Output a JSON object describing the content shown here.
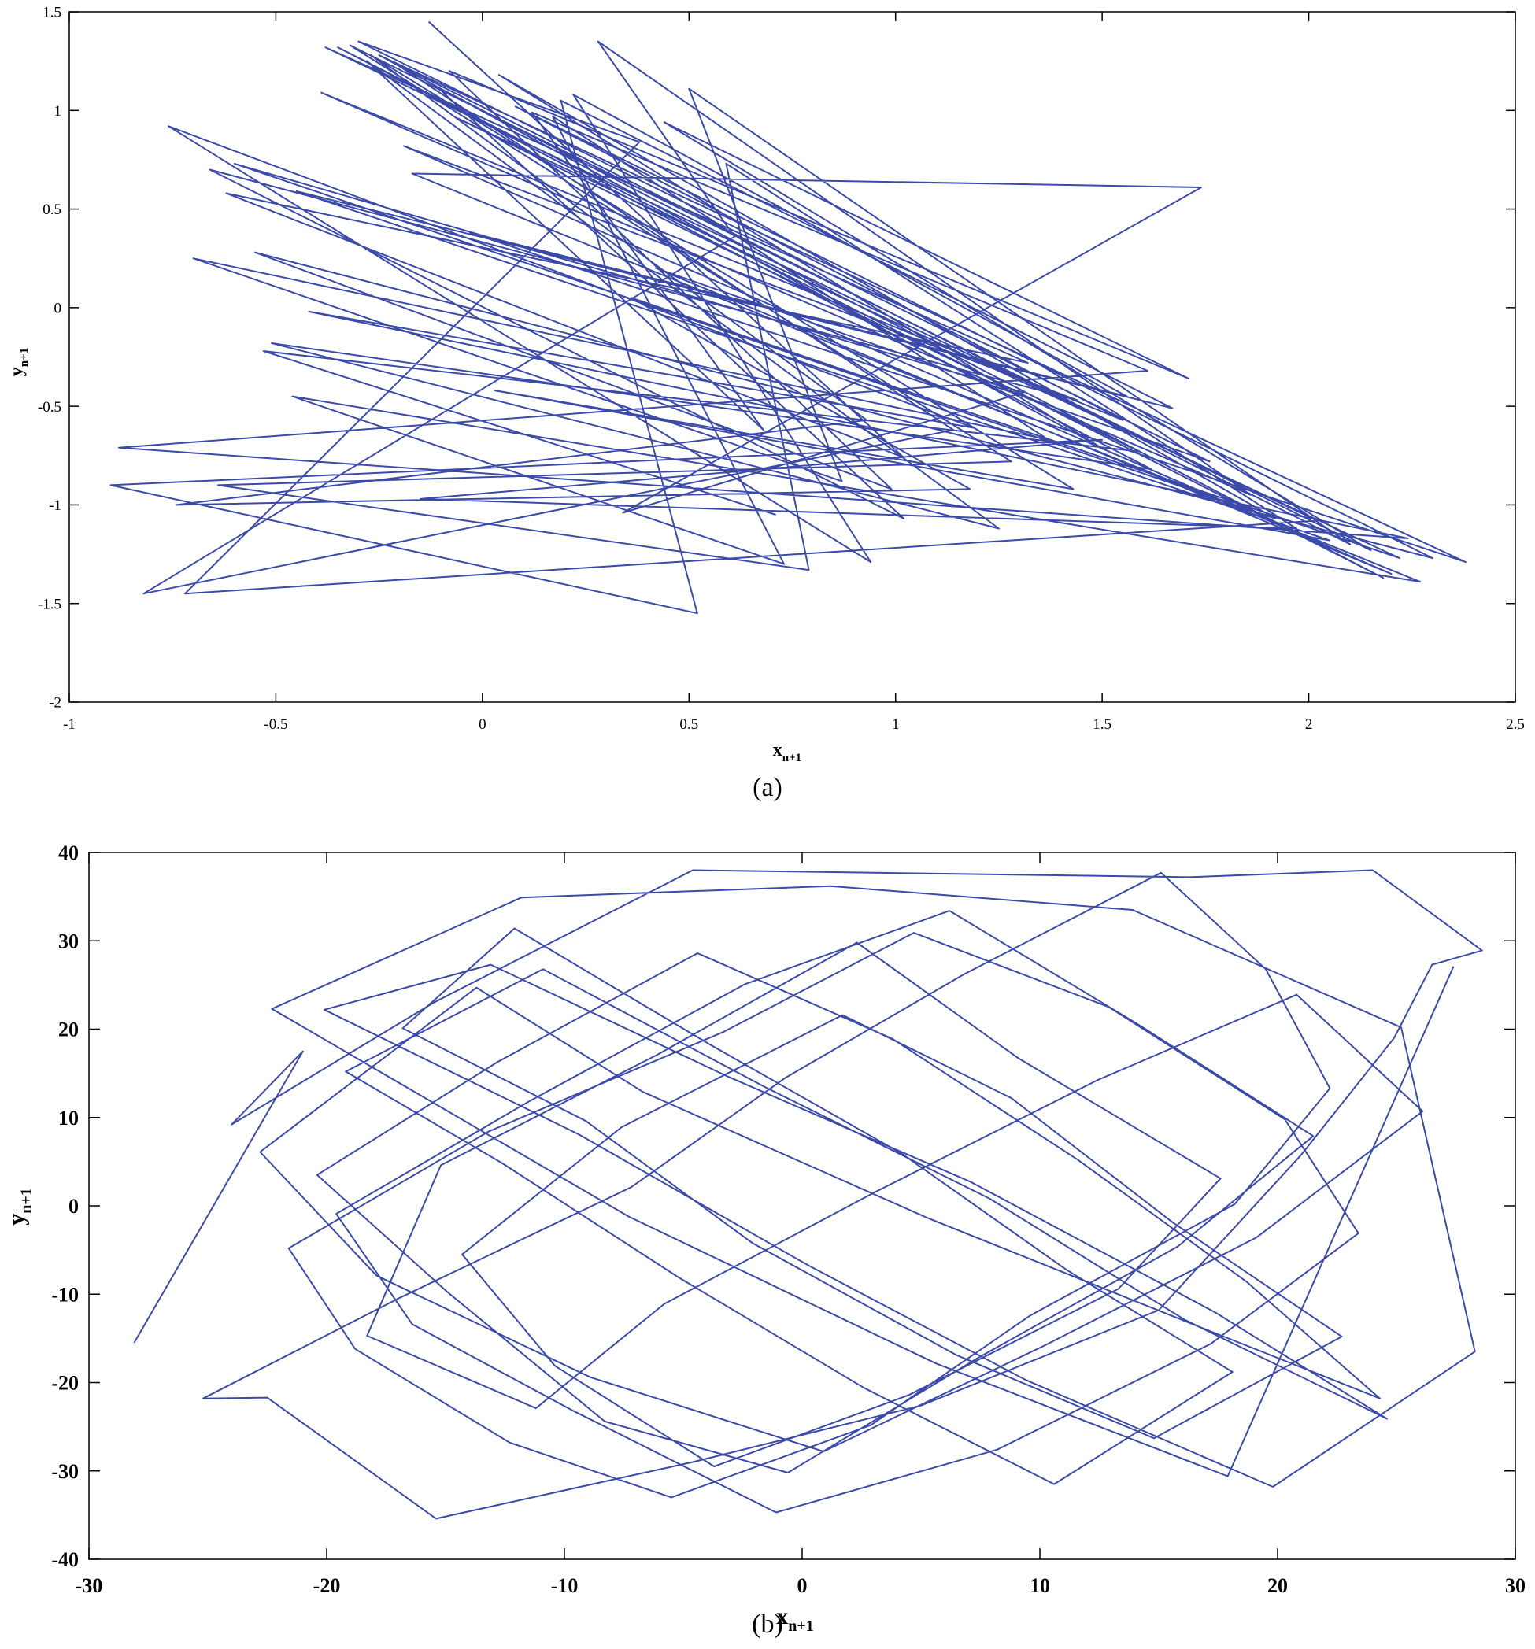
{
  "chart_data": [
    {
      "id": "a",
      "type": "line",
      "caption": "(a)",
      "xlabel": "x",
      "xlabel_sub": "n+1",
      "ylabel": "y",
      "ylabel_sub": "n+1",
      "xlim": [
        -1,
        2.5
      ],
      "ylim": [
        -2,
        1.5
      ],
      "xticks": [
        -1,
        -0.5,
        0,
        0.5,
        1,
        1.5,
        2,
        2.5
      ],
      "xtick_labels": [
        "-1",
        "-0.5",
        "0",
        "0.5",
        "1",
        "1.5",
        "2",
        "2.5"
      ],
      "yticks": [
        -2,
        -1.5,
        -1,
        -0.5,
        0,
        0.5,
        1,
        1.5
      ],
      "ytick_labels": [
        "-2",
        "-1.5",
        "-1",
        "-0.5",
        "0",
        "0.5",
        "1",
        "1.5"
      ],
      "grid": false,
      "line_color": "#3b4aa8",
      "series": [
        {
          "x": [
            -0.13,
            1.02,
            -0.62,
            1.32,
            -0.38,
            2.02,
            -0.72,
            0.38,
            -0.3,
            1.76,
            0.42,
            2.2,
            -0.19,
            1.44,
            -0.66,
            1.02,
            -0.11,
            2.18,
            -0.35,
            1.62,
            -0.51,
            1.25,
            -0.28,
            0.68,
            0.12,
            1.61,
            -0.88,
            2.24,
            -0.42,
            1.19,
            -0.76,
            0.94,
            0.22,
            1.56,
            -0.03,
            2.38,
            -0.25,
            1.49,
            0.04,
            1.92,
            -0.6,
            1.31,
            0.34,
            1.74,
            -0.17,
            2.27,
            -0.46,
            0.73,
            0.17,
            1.37,
            -0.7,
            0.87,
            0.5,
            2.1,
            -0.22,
            1.14,
            -0.82,
            0.61,
            0.28,
            1.86,
            -0.39,
            1.55,
            0.08,
            2.3,
            -0.55,
            0.99,
            -0.08,
            1.71,
            0.44,
            2.15,
            -0.32,
            1.28,
            -0.64,
            0.79,
            0.59,
            1.97,
            -0.15,
            1.5,
            -0.9,
            0.52,
            0.19,
            1.67,
            -0.45,
            2.05,
            0.03,
            1.43,
            -0.27,
            0.93,
            -0.74,
            1.18,
            0.36,
            2.22,
            -0.06,
            1.59,
            -0.53,
            0.71
          ],
          "y": [
            1.45,
            -0.76,
            0.58,
            -0.28,
            1.32,
            -1.08,
            -1.45,
            0.84,
            1.35,
            -0.78,
            0.2,
            -1.35,
            0.82,
            -0.47,
            0.7,
            -1.07,
            1.12,
            -1.37,
            1.32,
            -0.82,
            -0.18,
            -1.12,
            1.25,
            -0.62,
            0.99,
            -0.32,
            -0.71,
            -1.17,
            -0.02,
            -0.61,
            0.92,
            -1.29,
            1.08,
            -0.45,
            0.38,
            -1.29,
            1.28,
            -0.7,
            1.18,
            -1.07,
            0.73,
            -0.43,
            -1.04,
            0.61,
            0.68,
            -1.39,
            -0.45,
            -1.3,
            0.97,
            -0.67,
            0.25,
            -0.88,
            1.11,
            -1.2,
            1.25,
            -0.62,
            -1.45,
            0.36,
            1.35,
            -0.95,
            1.09,
            -0.57,
            1.02,
            -1.27,
            0.28,
            -0.92,
            1.2,
            -0.36,
            0.94,
            -1.23,
            1.33,
            -0.78,
            -0.9,
            -1.33,
            0.73,
            -1.12,
            -0.97,
            -0.67,
            -0.9,
            -1.55,
            1.05,
            -0.51,
            0.59,
            -1.18,
            -0.42,
            -0.92,
            1.28,
            -0.57,
            -1.0,
            -0.92,
            0.05,
            -1.27,
            0.96,
            -0.73,
            -0.22,
            -1.05
          ]
        }
      ]
    },
    {
      "id": "b",
      "type": "line",
      "caption": "(b)",
      "xlabel": "x",
      "xlabel_sub": "n+1",
      "ylabel": "y",
      "ylabel_sub": "n+1",
      "xlim": [
        -30,
        30
      ],
      "ylim": [
        -40,
        40
      ],
      "xticks": [
        -30,
        -20,
        -10,
        0,
        10,
        20,
        30
      ],
      "xtick_labels": [
        "-30",
        "-20",
        "-10",
        "0",
        "10",
        "20",
        "30"
      ],
      "yticks": [
        -40,
        -30,
        -20,
        -10,
        0,
        10,
        20,
        30,
        40
      ],
      "ytick_labels": [
        "-40",
        "-30",
        "-20",
        "-10",
        "0",
        "10",
        "20",
        "30",
        "40"
      ],
      "grid": false,
      "line_color": "#3b4aa8",
      "series": [
        {
          "x": [
            -28.1,
            -21,
            -24,
            -15.5,
            -4.6,
            16.3,
            24,
            28.6,
            26.5,
            24.9,
            21,
            15,
            5,
            -4.6,
            -15.4,
            -22.5,
            -25.2,
            -17,
            -7.2,
            -0.7,
            6.8,
            15.1,
            19.5,
            22.2,
            18.2,
            9.6,
            2.9,
            -5.5,
            -12.3,
            -18.8,
            -21.6,
            -13.2,
            -3.3,
            4.7,
            12.9,
            20.3,
            23.4,
            17.2,
            8.2,
            -1.1,
            -9.7,
            -16.4,
            -19.6,
            -11.5,
            -2.4,
            6.2,
            14.1,
            21.5,
            15.8,
            7.4,
            -0.6,
            -8.3,
            -14.9,
            -20.4,
            -12.8,
            -4.4,
            3.8,
            11.6,
            18.7,
            24.3,
            16.9,
            5.3,
            -6.7,
            -13.7,
            -22.8,
            -17.9,
            -8.9,
            0.9,
            10.2,
            19.1,
            26.1,
            20.8,
            12.4,
            3.1,
            -5.8,
            -11.2,
            -18.3,
            -15.2,
            -6.1,
            2.3,
            9.1,
            17.6,
            13.3,
            4.5,
            -3.7,
            -10.4,
            -14.3,
            -7.6,
            1.7,
            8.8,
            15.6,
            22.7,
            14.8,
            6.5,
            -2.1,
            -9.1,
            -16.8,
            -12.1,
            -3.9,
            4.2,
            11.1,
            18.1,
            10.6,
            2.6,
            -5.2,
            -12.6,
            -19.2,
            -10.9,
            -1.6,
            7.9,
            16.1,
            24.6,
            17.4,
            7.1,
            -3.1,
            -13.1,
            -20.1,
            -9.4,
            0.3,
            9.4,
            19.8,
            28.3,
            25.2,
            13.9,
            1.2,
            -11.8,
            -22.3,
            -7.3,
            5.6,
            17.9,
            27.4
          ],
          "y": [
            -15.5,
            17.5,
            9.2,
            23,
            38,
            37.2,
            38,
            28.9,
            27.3,
            19,
            5.8,
            -11.8,
            -22.6,
            -29,
            -35.4,
            -21.7,
            -21.8,
            -10.5,
            2.1,
            14.5,
            26.2,
            37.7,
            26.8,
            13.3,
            0.2,
            -12.4,
            -24.8,
            -33,
            -26.8,
            -16.2,
            -4.8,
            8.4,
            19.7,
            30.9,
            22.5,
            9.8,
            -3.1,
            -15.6,
            -27.6,
            -34.7,
            -23.1,
            -13.4,
            -0.9,
            11.8,
            25.1,
            33.4,
            20.6,
            7.9,
            -4.6,
            -17.2,
            -30.2,
            -24.4,
            -9.8,
            3.5,
            16.3,
            28.6,
            18.9,
            5.2,
            -8.6,
            -21.8,
            -13.9,
            -1.4,
            12.9,
            24.7,
            6.1,
            -7.9,
            -19.4,
            -27.8,
            -15.8,
            -3.6,
            10.7,
            23.9,
            14.2,
            1.6,
            -11.1,
            -22.9,
            -14.7,
            4.6,
            17.1,
            29.8,
            16.7,
            3.1,
            -9.4,
            -21.4,
            -29.5,
            -18.1,
            -5.5,
            8.9,
            21.6,
            12.2,
            -1.9,
            -14.8,
            -26.3,
            -16.9,
            -4.2,
            9.6,
            20.1,
            31.4,
            18.3,
            5.9,
            -7.2,
            -18.8,
            -31.5,
            -20.6,
            -8.1,
            4.8,
            15.2,
            26.8,
            13.5,
            0.8,
            -12.9,
            -24.1,
            -12.1,
            2.7,
            14.6,
            27.3,
            22.2,
            8.1,
            -6.8,
            -19.7,
            -31.8,
            -16.5,
            20.2,
            33.5,
            36.2,
            34.9,
            22.3,
            -1.2,
            -17.8,
            -30.6,
            27.1
          ]
        }
      ]
    }
  ]
}
